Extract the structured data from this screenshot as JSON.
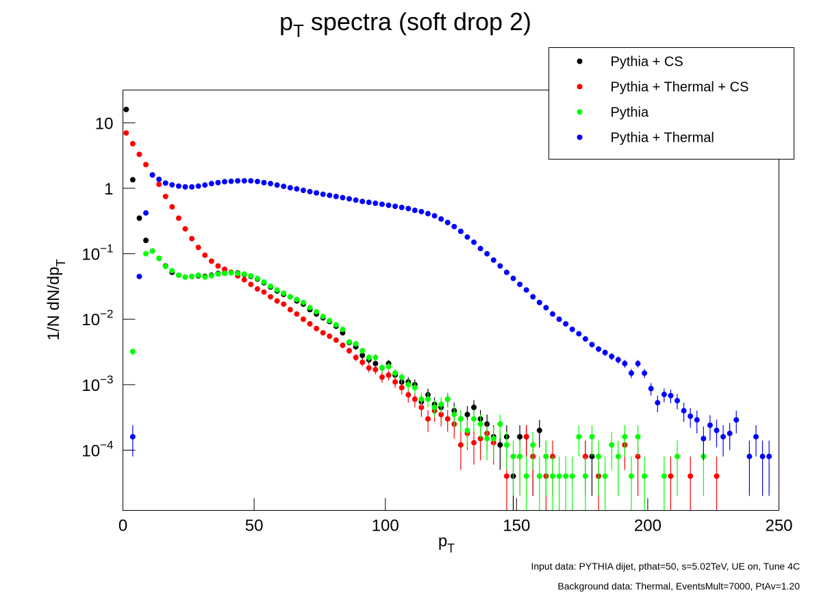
{
  "chart_data": {
    "type": "scatter",
    "title": {
      "base": "p",
      "sub": "T",
      "rest": " spectra (soft drop 2)"
    },
    "x_label": {
      "base": "p",
      "sub": "T"
    },
    "y_label": {
      "base": "1/N dN/dp",
      "sub": "T"
    },
    "annotations": [
      "Input data: PYTHIA dijet, pthat=50, s=5.02TeV, UE on, Tune 4C",
      "Background data: Thermal, EventsMult=7000, PtAv=1.20"
    ],
    "log_y": true,
    "grid": false,
    "legend": "top-right",
    "xlim": [
      0,
      250
    ],
    "xticks": [
      0,
      50,
      100,
      150,
      200,
      250
    ],
    "ylim": [
      1.2e-05,
      31.7
    ],
    "yticks": [
      {
        "value": 0.0001,
        "label": "10",
        "superscript": "−4"
      },
      {
        "value": 0.001,
        "label": "10",
        "superscript": "−3"
      },
      {
        "value": 0.01,
        "label": "10",
        "superscript": "−2"
      },
      {
        "value": 0.1,
        "label": "10",
        "superscript": "−1"
      },
      1,
      10
    ],
    "x": [
      1.25,
      3.75,
      6.25,
      8.75,
      11.25,
      13.75,
      16.25,
      18.75,
      21.25,
      23.75,
      26.25,
      28.75,
      31.25,
      33.75,
      36.25,
      38.75,
      41.25,
      43.75,
      46.25,
      48.75,
      51.25,
      53.75,
      56.25,
      58.75,
      61.25,
      63.75,
      66.25,
      68.75,
      71.25,
      73.75,
      76.25,
      78.75,
      81.25,
      83.75,
      86.25,
      88.75,
      91.25,
      93.75,
      96.25,
      98.75,
      101.25,
      103.75,
      106.25,
      108.75,
      111.25,
      113.75,
      116.25,
      118.75,
      121.25,
      123.75,
      126.25,
      128.75,
      131.25,
      133.75,
      136.25,
      138.75,
      141.25,
      143.75,
      146.25,
      148.75,
      151.25,
      153.75,
      156.25,
      158.75,
      161.25,
      163.75,
      166.25,
      168.75,
      171.25,
      173.75,
      176.25,
      178.75,
      181.25,
      183.75,
      186.25,
      188.75,
      191.25,
      193.75,
      196.25,
      198.75,
      201.25,
      203.75,
      206.25,
      208.75,
      211.25,
      213.75,
      216.25,
      218.75,
      221.25,
      223.75,
      226.25,
      228.75,
      231.25,
      233.75,
      236.25,
      238.75,
      241.25,
      243.75,
      246.25,
      248.75
    ],
    "series": [
      {
        "name": "Pythia + CS",
        "color": "#000000",
        "values": [
          16,
          1.35,
          0.35,
          0.16,
          0.11,
          0.085,
          0.065,
          0.052,
          0.047,
          0.044,
          0.045,
          0.046,
          0.045,
          0.047,
          0.05,
          0.051,
          0.052,
          0.051,
          0.048,
          0.045,
          0.041,
          0.036,
          0.031,
          0.027,
          0.024,
          0.022,
          0.019,
          0.017,
          0.014,
          0.012,
          0.0105,
          0.0092,
          0.0078,
          0.0062,
          0.0044,
          0.0038,
          0.0028,
          0.0024,
          0.0021,
          0.0018,
          0.0021,
          0.0014,
          0.0011,
          0.0011,
          0.001,
          0.00055,
          0.0007,
          0.0005,
          0.00045,
          0.0006,
          0.0004,
          0.0003,
          0.00035,
          0.00045,
          0.0003,
          0.00025,
          0.00016,
          0.00012,
          0.00016,
          4e-05,
          0.00016,
          0.00016,
          8e-05,
          0.0002,
          8e-05,
          null,
          null,
          null,
          null,
          null,
          8e-05,
          8e-05,
          null,
          null,
          null,
          null,
          null,
          null,
          null,
          null,
          null,
          null,
          null,
          null,
          null,
          null,
          null,
          null,
          null,
          null,
          null,
          null,
          null,
          null,
          null,
          null,
          null,
          null,
          null,
          null
        ],
        "errors": [
          null,
          null,
          null,
          null,
          null,
          null,
          null,
          null,
          null,
          null,
          null,
          null,
          null,
          null,
          null,
          null,
          null,
          null,
          null,
          null,
          null,
          null,
          null,
          null,
          null,
          null,
          null,
          null,
          null,
          null,
          null,
          null,
          null,
          null,
          0.0004,
          0.00039,
          0.00033,
          0.00031,
          0.00029,
          0.00027,
          0.00029,
          0.00024,
          0.00021,
          0.00021,
          0.0002,
          0.00015,
          0.00017,
          0.00014,
          0.00013,
          0.00015,
          0.00013,
          0.00011,
          0.00012,
          0.00013,
          0.00011,
          0.0001,
          8e-05,
          7e-05,
          8e-05,
          4e-05,
          8e-05,
          8e-05,
          6e-05,
          9e-05,
          6e-05,
          null,
          null,
          null,
          null,
          null,
          6e-05,
          6e-05,
          null,
          null,
          null,
          null,
          null,
          null,
          null,
          null,
          null,
          null,
          null,
          null,
          null,
          null,
          null,
          null,
          null,
          null,
          null,
          null,
          null,
          null,
          null,
          null,
          null,
          null,
          null,
          null
        ]
      },
      {
        "name": "Pythia + Thermal + CS",
        "color": "#ff0000",
        "values": [
          7,
          4.8,
          3.3,
          2.3,
          1.6,
          1.15,
          0.75,
          0.52,
          0.35,
          0.24,
          0.17,
          0.125,
          0.095,
          0.077,
          0.065,
          0.058,
          0.052,
          0.046,
          0.04,
          0.034,
          0.029,
          0.026,
          0.022,
          0.019,
          0.017,
          0.014,
          0.012,
          0.01,
          0.0085,
          0.0072,
          0.0062,
          0.0055,
          0.0048,
          0.004,
          0.0033,
          0.0026,
          0.0022,
          0.0018,
          0.0017,
          0.0013,
          0.0014,
          0.0011,
          0.0009,
          0.0007,
          0.0006,
          0.00045,
          0.0003,
          0.0004,
          0.00035,
          0.0003,
          0.00025,
          0.00012,
          0.00018,
          0.00013,
          0.00015,
          0.00018,
          0.00013,
          null,
          4e-05,
          null,
          8e-05,
          0.00016,
          8e-05,
          null,
          4e-05,
          8e-05,
          null,
          null,
          null,
          null,
          8e-05,
          null,
          4e-05,
          null,
          null,
          null,
          0.00012,
          null,
          8e-05,
          null,
          null,
          null,
          null,
          4e-05,
          null,
          null,
          4e-05,
          null,
          null,
          null,
          4e-05,
          null,
          null,
          null,
          null,
          null,
          null,
          null,
          null,
          null
        ],
        "errors": [
          null,
          null,
          null,
          null,
          null,
          null,
          null,
          null,
          null,
          null,
          null,
          null,
          null,
          null,
          null,
          null,
          null,
          null,
          null,
          null,
          null,
          null,
          null,
          null,
          null,
          null,
          null,
          null,
          null,
          null,
          null,
          null,
          0.00044,
          0.0004,
          0.00036,
          0.00032,
          0.0003,
          0.00027,
          0.00026,
          0.00023,
          0.00024,
          0.00021,
          0.00019,
          0.00017,
          0.00015,
          0.00013,
          0.00011,
          0.00013,
          0.00012,
          0.00011,
          0.0001,
          7e-05,
          8e-05,
          7e-05,
          8e-05,
          8e-05,
          7e-05,
          null,
          4e-05,
          null,
          6e-05,
          8e-05,
          6e-05,
          null,
          4e-05,
          6e-05,
          null,
          null,
          null,
          null,
          6e-05,
          null,
          4e-05,
          null,
          null,
          null,
          7e-05,
          null,
          6e-05,
          null,
          null,
          null,
          null,
          4e-05,
          null,
          null,
          4e-05,
          null,
          null,
          null,
          4e-05,
          null,
          null,
          null,
          null,
          null,
          null,
          null,
          null,
          null
        ]
      },
      {
        "name": "Pythia",
        "color": "#00ff00",
        "values": [
          null,
          0.0032,
          null,
          0.1,
          0.11,
          0.085,
          0.064,
          0.055,
          0.047,
          0.044,
          0.045,
          0.047,
          0.044,
          0.046,
          0.049,
          0.05,
          0.051,
          0.05,
          0.049,
          0.046,
          0.042,
          0.037,
          0.032,
          0.028,
          0.025,
          0.022,
          0.02,
          0.018,
          0.015,
          0.013,
          0.011,
          0.0095,
          0.0082,
          0.007,
          0.0045,
          0.0042,
          0.0033,
          0.0026,
          0.0026,
          0.0018,
          0.0019,
          0.0015,
          0.0013,
          0.001,
          0.0009,
          0.0006,
          0.0006,
          0.00045,
          0.0005,
          0.0006,
          0.00035,
          0.0003,
          0.0002,
          0.0003,
          0.00025,
          0.00015,
          0.00015,
          0.00025,
          0.00012,
          8e-05,
          8e-05,
          4e-05,
          0.00012,
          4e-05,
          8e-05,
          4e-05,
          4e-05,
          4e-05,
          4e-05,
          0.00016,
          4e-05,
          0.00016,
          8e-05,
          4e-05,
          0.00012,
          8e-05,
          0.00016,
          4e-05,
          0.00016,
          4e-05,
          null,
          null,
          4e-05,
          null,
          8e-05,
          null,
          null,
          null,
          8e-05,
          null,
          null,
          null,
          null,
          null,
          null,
          null,
          null,
          null,
          null,
          null
        ],
        "errors": [
          null,
          0.00036,
          null,
          null,
          null,
          null,
          null,
          null,
          null,
          null,
          null,
          null,
          null,
          null,
          null,
          null,
          null,
          null,
          null,
          null,
          null,
          null,
          null,
          null,
          null,
          null,
          null,
          null,
          null,
          null,
          null,
          null,
          null,
          null,
          0.00042,
          0.00041,
          0.00036,
          0.00032,
          0.00032,
          0.00027,
          0.00028,
          0.00024,
          0.00023,
          0.0002,
          0.00019,
          0.00015,
          0.00015,
          0.00013,
          0.00014,
          0.00015,
          0.00012,
          0.00011,
          9e-05,
          0.00011,
          0.0001,
          8e-05,
          8e-05,
          0.0001,
          7e-05,
          6e-05,
          6e-05,
          4e-05,
          7e-05,
          4e-05,
          6e-05,
          4e-05,
          4e-05,
          4e-05,
          4e-05,
          8e-05,
          4e-05,
          8e-05,
          6e-05,
          4e-05,
          7e-05,
          6e-05,
          8e-05,
          4e-05,
          8e-05,
          4e-05,
          null,
          null,
          4e-05,
          null,
          6e-05,
          null,
          null,
          null,
          6e-05,
          null,
          null,
          null,
          null,
          null,
          null,
          null,
          null,
          null,
          null,
          null
        ]
      },
      {
        "name": "Pythia + Thermal",
        "color": "#0000ff",
        "values": [
          null,
          0.00016,
          0.045,
          0.42,
          1.6,
          1.37,
          1.2,
          1.13,
          1.08,
          1.05,
          1.05,
          1.08,
          1.12,
          1.18,
          1.22,
          1.26,
          1.28,
          1.3,
          1.3,
          1.3,
          1.27,
          1.22,
          1.18,
          1.12,
          1.07,
          1.02,
          0.98,
          0.93,
          0.89,
          0.85,
          0.81,
          0.78,
          0.75,
          0.72,
          0.69,
          0.66,
          0.63,
          0.61,
          0.59,
          0.57,
          0.55,
          0.53,
          0.51,
          0.49,
          0.46,
          0.44,
          0.41,
          0.38,
          0.34,
          0.3,
          0.26,
          0.22,
          0.18,
          0.15,
          0.12,
          0.1,
          0.08,
          0.065,
          0.052,
          0.042,
          0.034,
          0.028,
          0.022,
          0.018,
          0.015,
          0.012,
          0.01,
          0.0085,
          0.007,
          0.006,
          0.005,
          0.0041,
          0.0035,
          0.0031,
          0.0027,
          0.0024,
          0.0021,
          0.0015,
          0.0021,
          0.0015,
          0.00087,
          0.00053,
          0.00071,
          0.00068,
          0.00057,
          0.0004,
          0.00033,
          0.00029,
          0.00015,
          0.00024,
          0.0002,
          0.00016,
          0.00018,
          0.00029,
          null,
          8e-05,
          0.00016,
          8e-05,
          8e-05,
          null
        ],
        "errors": [
          null,
          8e-05,
          null,
          null,
          null,
          null,
          null,
          null,
          null,
          null,
          null,
          null,
          null,
          null,
          null,
          null,
          null,
          null,
          null,
          null,
          null,
          null,
          null,
          null,
          null,
          null,
          null,
          null,
          null,
          null,
          null,
          null,
          null,
          null,
          null,
          null,
          null,
          null,
          null,
          null,
          null,
          null,
          null,
          null,
          null,
          null,
          null,
          null,
          null,
          null,
          null,
          null,
          null,
          null,
          null,
          null,
          null,
          null,
          null,
          null,
          null,
          null,
          null,
          null,
          null,
          null,
          null,
          null,
          null,
          null,
          null,
          0.0004,
          0.00037,
          0.00035,
          0.00033,
          0.00031,
          0.00029,
          0.00024,
          0.00029,
          0.00024,
          0.00019,
          0.00015,
          0.00017,
          0.00016,
          0.00015,
          0.00013,
          0.00011,
          0.00011,
          8e-05,
          0.0001,
          9e-05,
          8e-05,
          8e-05,
          0.00011,
          null,
          6e-05,
          8e-05,
          6e-05,
          6e-05,
          null
        ]
      }
    ]
  }
}
